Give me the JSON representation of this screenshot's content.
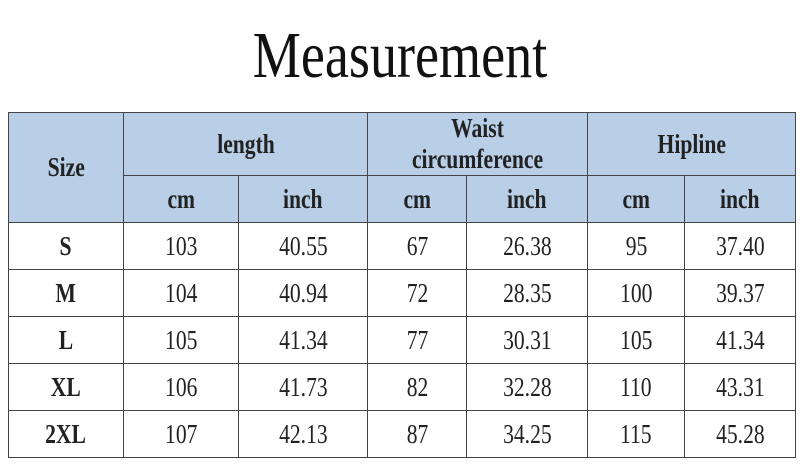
{
  "title": "Measurement",
  "table": {
    "size_header": "Size",
    "groups": [
      "length",
      "Waist circumference",
      "Hipline"
    ],
    "units": [
      "cm",
      "inch",
      "cm",
      "inch",
      "cm",
      "inch"
    ],
    "rows": [
      [
        "S",
        "103",
        "40.55",
        "67",
        "26.38",
        "95",
        "37.40"
      ],
      [
        "M",
        "104",
        "40.94",
        "72",
        "28.35",
        "100",
        "39.37"
      ],
      [
        "L",
        "105",
        "41.34",
        "77",
        "30.31",
        "105",
        "41.34"
      ],
      [
        "XL",
        "106",
        "41.73",
        "82",
        "32.28",
        "110",
        "43.31"
      ],
      [
        "2XL",
        "107",
        "42.13",
        "87",
        "34.25",
        "115",
        "45.28"
      ]
    ]
  }
}
